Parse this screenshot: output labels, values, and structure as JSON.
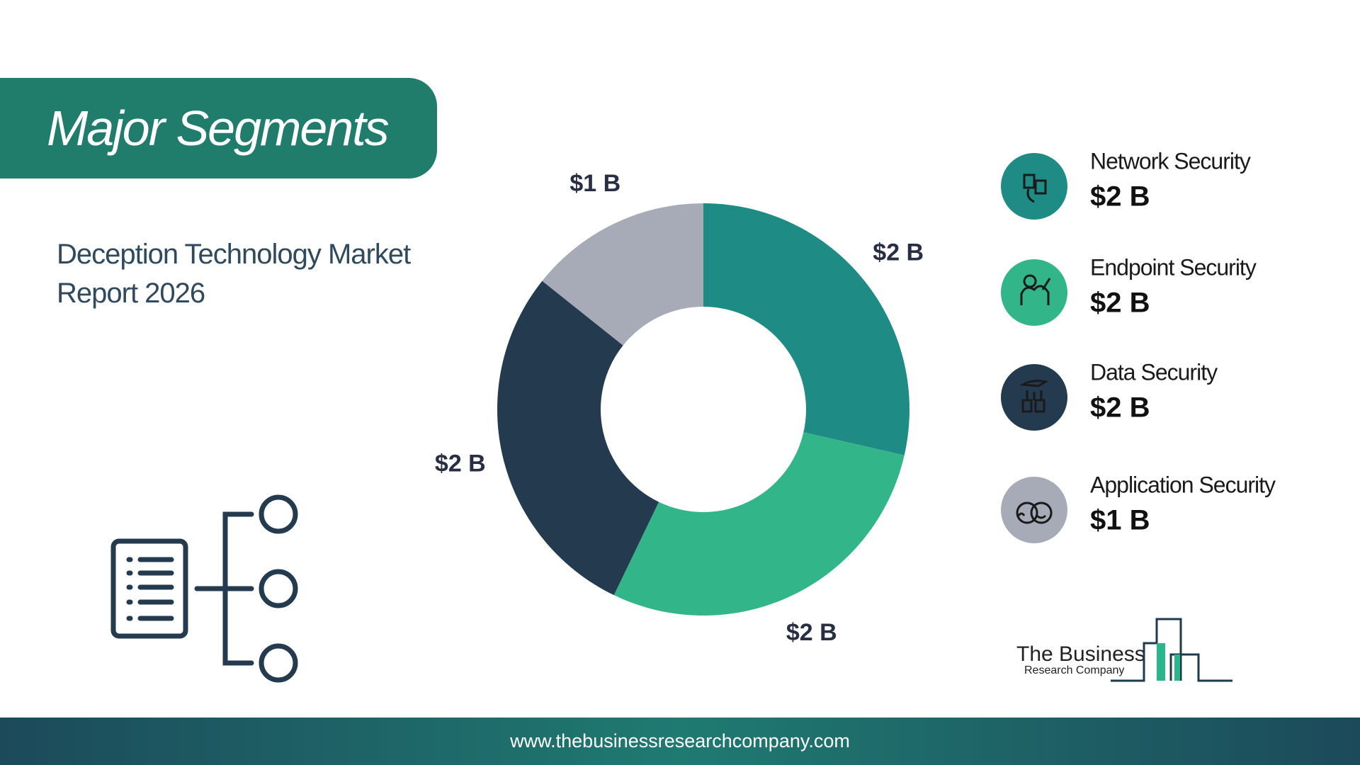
{
  "chart_data": {
    "type": "donut",
    "title": "Major Segments",
    "subtitle": "Deception Technology Market Report 2026",
    "categories": [
      "Network Security",
      "Endpoint Security",
      "Data Security",
      "Application Security"
    ],
    "values": [
      2,
      2,
      2,
      1
    ],
    "value_labels": [
      "$2 B",
      "$2 B",
      "$2 B",
      "$1 B"
    ],
    "colors": [
      "#1e8c84",
      "#33b58a",
      "#243a4f",
      "#a6abb7"
    ]
  },
  "logo": {
    "line1": "The Business",
    "line2": "Research Company"
  },
  "footer": {
    "url": "www.thebusinessresearchcompany.com"
  }
}
